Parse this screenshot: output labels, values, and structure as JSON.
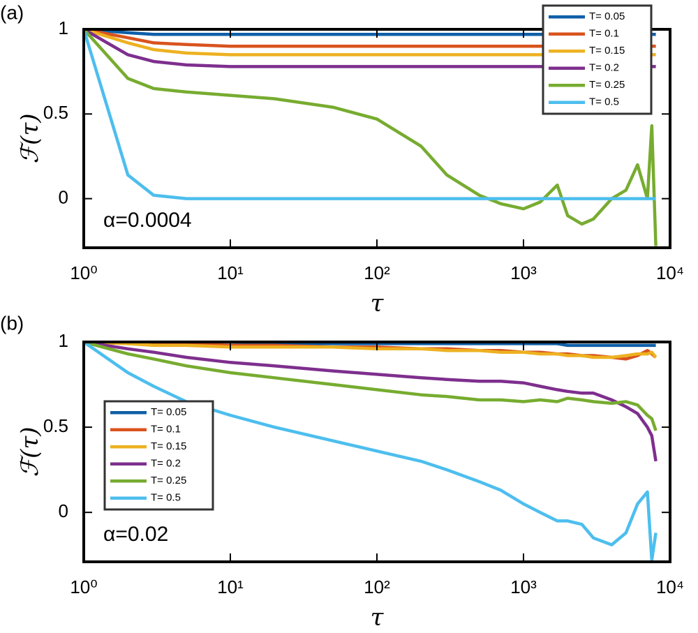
{
  "chart_data": [
    {
      "type": "line",
      "panel_label": "(a)",
      "annotation": "α=0.0004",
      "xlabel": "τ",
      "ylabel": "ℱ(τ)",
      "xscale": "log",
      "legend": "upper right",
      "xlim": [
        1,
        10000
      ],
      "xticks": [
        {
          "value": 1,
          "label": "10⁰"
        },
        {
          "value": 10,
          "label": "10¹"
        },
        {
          "value": 100,
          "label": "10²"
        },
        {
          "value": 1000,
          "label": "10³"
        },
        {
          "value": 10000,
          "label": "10⁴"
        }
      ],
      "ylim": [
        -0.29,
        1.0
      ],
      "yticks": [
        0,
        0.5,
        1
      ],
      "x": [
        1,
        2,
        3,
        5,
        10,
        20,
        50,
        100,
        200,
        300,
        500,
        700,
        1000,
        1300,
        1700,
        2000,
        2500,
        3000,
        4000,
        5000,
        6000,
        7000,
        7500,
        8000
      ],
      "series": [
        {
          "name": "T= 0.05",
          "color": "#0f5fa8",
          "values": [
            1,
            0.98,
            0.97,
            0.97,
            0.97,
            0.97,
            0.97,
            0.97,
            0.97,
            0.97,
            0.97,
            0.97,
            0.97,
            0.97,
            0.97,
            0.97,
            0.97,
            0.97,
            0.97,
            0.97,
            0.97,
            0.97,
            0.97,
            0.97
          ]
        },
        {
          "name": "T= 0.1",
          "color": "#d9531e",
          "values": [
            1,
            0.95,
            0.92,
            0.91,
            0.9,
            0.9,
            0.9,
            0.9,
            0.9,
            0.9,
            0.9,
            0.9,
            0.9,
            0.9,
            0.9,
            0.9,
            0.9,
            0.9,
            0.9,
            0.9,
            0.9,
            0.9,
            0.9,
            0.9
          ]
        },
        {
          "name": "T= 0.15",
          "color": "#edb120",
          "values": [
            1,
            0.92,
            0.88,
            0.86,
            0.85,
            0.85,
            0.85,
            0.85,
            0.85,
            0.85,
            0.85,
            0.85,
            0.85,
            0.85,
            0.85,
            0.85,
            0.85,
            0.85,
            0.85,
            0.85,
            0.85,
            0.85,
            0.85,
            0.85
          ]
        },
        {
          "name": "T= 0.2",
          "color": "#7e2f8e",
          "values": [
            1,
            0.85,
            0.81,
            0.79,
            0.78,
            0.78,
            0.78,
            0.78,
            0.78,
            0.78,
            0.78,
            0.78,
            0.78,
            0.78,
            0.78,
            0.78,
            0.78,
            0.78,
            0.78,
            0.78,
            0.78,
            0.78,
            0.78,
            0.78
          ]
        },
        {
          "name": "T= 0.25",
          "color": "#77ac30",
          "values": [
            1,
            0.71,
            0.65,
            0.63,
            0.61,
            0.59,
            0.54,
            0.47,
            0.31,
            0.14,
            0.02,
            -0.03,
            -0.06,
            -0.02,
            0.08,
            -0.1,
            -0.15,
            -0.12,
            0.0,
            0.05,
            0.2,
            0.0,
            0.43,
            -0.28
          ]
        },
        {
          "name": "T= 0.5",
          "color": "#4dbeee",
          "values": [
            1,
            0.14,
            0.02,
            0.0,
            0.0,
            0.0,
            0.0,
            0.0,
            0.0,
            0.0,
            0.0,
            0.0,
            0.0,
            0.0,
            0.0,
            0.0,
            0.0,
            0.0,
            0.0,
            0.0,
            0.0,
            0.0,
            0.0,
            0.0
          ]
        }
      ]
    },
    {
      "type": "line",
      "panel_label": "(b)",
      "annotation": "α=0.02",
      "xlabel": "τ",
      "ylabel": "ℱ(τ)",
      "xscale": "log",
      "legend": "center left",
      "xlim": [
        1,
        10000
      ],
      "xticks": [
        {
          "value": 1,
          "label": "10⁰"
        },
        {
          "value": 10,
          "label": "10¹"
        },
        {
          "value": 100,
          "label": "10²"
        },
        {
          "value": 1000,
          "label": "10³"
        },
        {
          "value": 10000,
          "label": "10⁴"
        }
      ],
      "ylim": [
        -0.29,
        1.0
      ],
      "yticks": [
        0,
        0.5,
        1
      ],
      "x": [
        1,
        2,
        3,
        5,
        10,
        20,
        50,
        100,
        200,
        300,
        500,
        700,
        1000,
        1300,
        1700,
        2000,
        2500,
        3000,
        4000,
        5000,
        6000,
        7000,
        7500,
        8000
      ],
      "series": [
        {
          "name": "T= 0.05",
          "color": "#0f5fa8",
          "values": [
            1,
            1,
            1,
            1,
            1,
            0.99,
            0.99,
            0.99,
            0.99,
            0.99,
            0.99,
            0.99,
            0.99,
            0.99,
            0.99,
            0.98,
            0.98,
            0.98,
            0.98,
            0.98,
            0.98,
            0.98,
            0.98,
            0.98
          ]
        },
        {
          "name": "T= 0.1",
          "color": "#d9531e",
          "values": [
            1,
            0.99,
            0.99,
            0.99,
            0.98,
            0.98,
            0.97,
            0.97,
            0.96,
            0.96,
            0.95,
            0.95,
            0.94,
            0.94,
            0.93,
            0.93,
            0.92,
            0.92,
            0.91,
            0.9,
            0.92,
            0.95,
            0.93,
            0.91
          ]
        },
        {
          "name": "T= 0.15",
          "color": "#edb120",
          "values": [
            1,
            0.99,
            0.98,
            0.98,
            0.97,
            0.97,
            0.97,
            0.96,
            0.96,
            0.95,
            0.95,
            0.94,
            0.94,
            0.93,
            0.93,
            0.92,
            0.92,
            0.91,
            0.91,
            0.92,
            0.93,
            0.93,
            0.94,
            0.91
          ]
        },
        {
          "name": "T= 0.2",
          "color": "#7e2f8e",
          "values": [
            1,
            0.96,
            0.94,
            0.91,
            0.88,
            0.86,
            0.83,
            0.81,
            0.79,
            0.78,
            0.77,
            0.77,
            0.76,
            0.74,
            0.72,
            0.71,
            0.7,
            0.7,
            0.66,
            0.62,
            0.58,
            0.5,
            0.45,
            0.3
          ]
        },
        {
          "name": "T= 0.25",
          "color": "#77ac30",
          "values": [
            1,
            0.93,
            0.9,
            0.86,
            0.82,
            0.79,
            0.75,
            0.72,
            0.69,
            0.68,
            0.66,
            0.66,
            0.65,
            0.66,
            0.65,
            0.67,
            0.66,
            0.65,
            0.64,
            0.65,
            0.63,
            0.57,
            0.55,
            0.48
          ]
        },
        {
          "name": "T= 0.5",
          "color": "#4dbeee",
          "values": [
            1,
            0.82,
            0.74,
            0.65,
            0.57,
            0.5,
            0.42,
            0.36,
            0.3,
            0.25,
            0.18,
            0.13,
            0.05,
            0.0,
            -0.05,
            -0.05,
            -0.07,
            -0.15,
            -0.19,
            -0.12,
            0.05,
            0.12,
            -0.28,
            -0.12
          ]
        }
      ]
    }
  ]
}
